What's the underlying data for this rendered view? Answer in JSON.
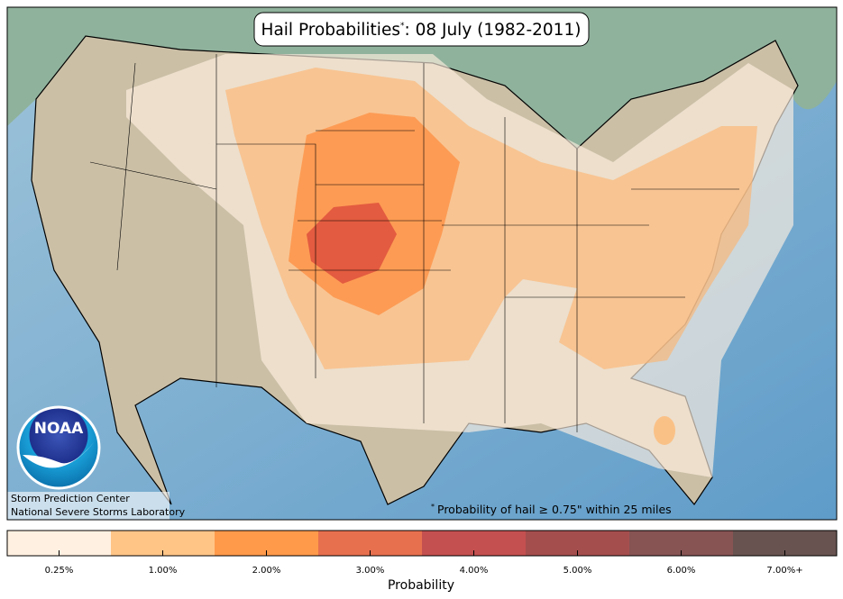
{
  "title": {
    "main": "Hail Probabilities",
    "mark": "*",
    "rest": ": 08 July (1982-2011)"
  },
  "footnote": {
    "mark": "*",
    "text": "Probability of hail ≥ 0.75\" within 25 miles"
  },
  "logo": "NOAA",
  "credits": [
    "Storm Prediction Center",
    "National Severe Storms Laboratory"
  ],
  "legend": {
    "title": "Probability",
    "items": [
      {
        "label": "0.25%",
        "color": "#fff0e1"
      },
      {
        "label": "1.00%",
        "color": "#ffc587"
      },
      {
        "label": "2.00%",
        "color": "#ff9a4b"
      },
      {
        "label": "3.00%",
        "color": "#e7704f"
      },
      {
        "label": "4.00%",
        "color": "#c55050"
      },
      {
        "label": "5.00%",
        "color": "#a54e4e"
      },
      {
        "label": "6.00%",
        "color": "#875353"
      },
      {
        "label": "7.00%+",
        "color": "#685350"
      }
    ]
  }
}
